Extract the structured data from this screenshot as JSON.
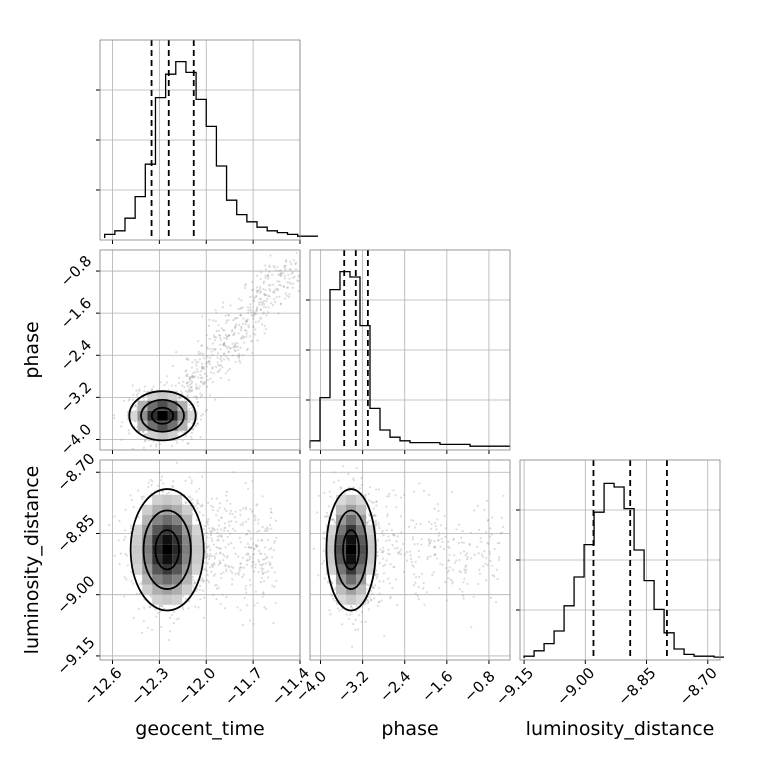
{
  "chart_data": {
    "type": "corner",
    "parameters": [
      "geocent_time",
      "phase",
      "luminosity_distance"
    ],
    "ticks": {
      "geocent_time": [
        "−12.6",
        "−12.3",
        "−12.0",
        "−11.7",
        "−11.4"
      ],
      "phase": [
        "−4.0",
        "−3.2",
        "−2.4",
        "−1.6",
        "−0.8"
      ],
      "luminosity_distance": [
        "−9.15",
        "−9.00",
        "−8.85",
        "−8.70"
      ]
    },
    "ranges": {
      "geocent_time": [
        -12.68,
        -11.4
      ],
      "phase": [
        -4.2,
        -0.4
      ],
      "luminosity_distance": [
        -9.16,
        -8.67
      ]
    },
    "quantiles": {
      "geocent_time": [
        -12.35,
        -12.24,
        -12.08
      ],
      "phase": [
        -3.55,
        -3.33,
        -3.1
      ],
      "luminosity_distance": [
        -8.98,
        -8.89,
        -8.8
      ]
    },
    "histograms": {
      "geocent_time": {
        "edges_start": -12.65,
        "bin_width": 0.065,
        "counts": [
          0.02,
          0.04,
          0.11,
          0.23,
          0.41,
          0.78,
          0.91,
          0.98,
          0.92,
          0.77,
          0.62,
          0.4,
          0.21,
          0.13,
          0.09,
          0.06,
          0.04,
          0.03,
          0.02,
          0.01,
          0.01
        ]
      },
      "phase": {
        "edges_start": -4.2,
        "bin_width": 0.19,
        "counts": [
          0.04,
          0.28,
          0.88,
          0.98,
          0.95,
          0.68,
          0.22,
          0.1,
          0.06,
          0.04,
          0.03,
          0.03,
          0.03,
          0.02,
          0.02,
          0.02,
          0.01,
          0.01,
          0.01,
          0.01
        ]
      },
      "luminosity_distance": {
        "edges_start": -9.15,
        "bin_width": 0.0245,
        "counts": [
          0.01,
          0.04,
          0.08,
          0.15,
          0.29,
          0.45,
          0.63,
          0.81,
          0.97,
          0.95,
          0.83,
          0.6,
          0.43,
          0.27,
          0.14,
          0.05,
          0.02,
          0.01,
          0.01,
          0.005
        ]
      }
    },
    "pairs": [
      {
        "x": "geocent_time",
        "y": "phase",
        "center": [
          -12.28,
          -3.55
        ],
        "sigma": [
          0.1,
          0.22
        ]
      },
      {
        "x": "geocent_time",
        "y": "luminosity_distance",
        "center": [
          -12.25,
          -8.89
        ],
        "sigma": [
          0.11,
          0.07
        ]
      },
      {
        "x": "phase",
        "y": "luminosity_distance",
        "center": [
          -3.42,
          -8.89
        ],
        "sigma": [
          0.22,
          0.07
        ]
      }
    ],
    "grid": true
  }
}
